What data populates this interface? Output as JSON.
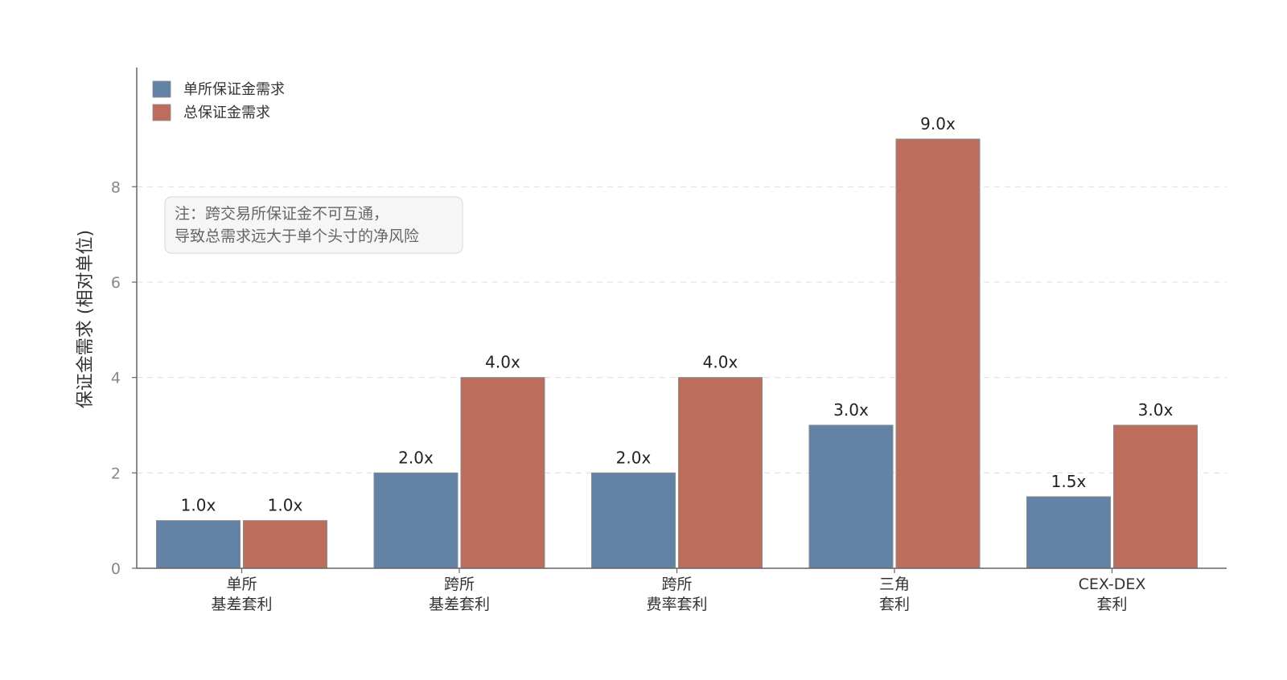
{
  "chart_data": {
    "type": "bar",
    "title": "",
    "ylabel": "保证金需求 (相对单位)",
    "xlabel": "",
    "ylim": [
      0,
      10.5
    ],
    "yticks": [
      0,
      2,
      4,
      6,
      8
    ],
    "grid": "horizontal-dashed",
    "legend_position": "top-left",
    "categories": [
      [
        "单所",
        "基差套利"
      ],
      [
        "跨所",
        "基差套利"
      ],
      [
        "跨所",
        "费率套利"
      ],
      [
        "三角",
        "套利"
      ],
      [
        "CEX-DEX",
        "套利"
      ]
    ],
    "series": [
      {
        "name": "单所保证金需求",
        "color": "#6283A6",
        "values": [
          1.0,
          2.0,
          2.0,
          3.0,
          1.5
        ],
        "labels": [
          "1.0x",
          "2.0x",
          "2.0x",
          "3.0x",
          "1.5x"
        ]
      },
      {
        "name": "总保证金需求",
        "color": "#BD6D5C",
        "values": [
          1.0,
          4.0,
          4.0,
          9.0,
          3.0
        ],
        "labels": [
          "1.0x",
          "4.0x",
          "4.0x",
          "9.0x",
          "3.0x"
        ]
      }
    ],
    "annotation": {
      "lines": [
        "注：跨交易所保证金不可互通，",
        "导致总需求远大于单个头寸的净风险"
      ]
    }
  }
}
